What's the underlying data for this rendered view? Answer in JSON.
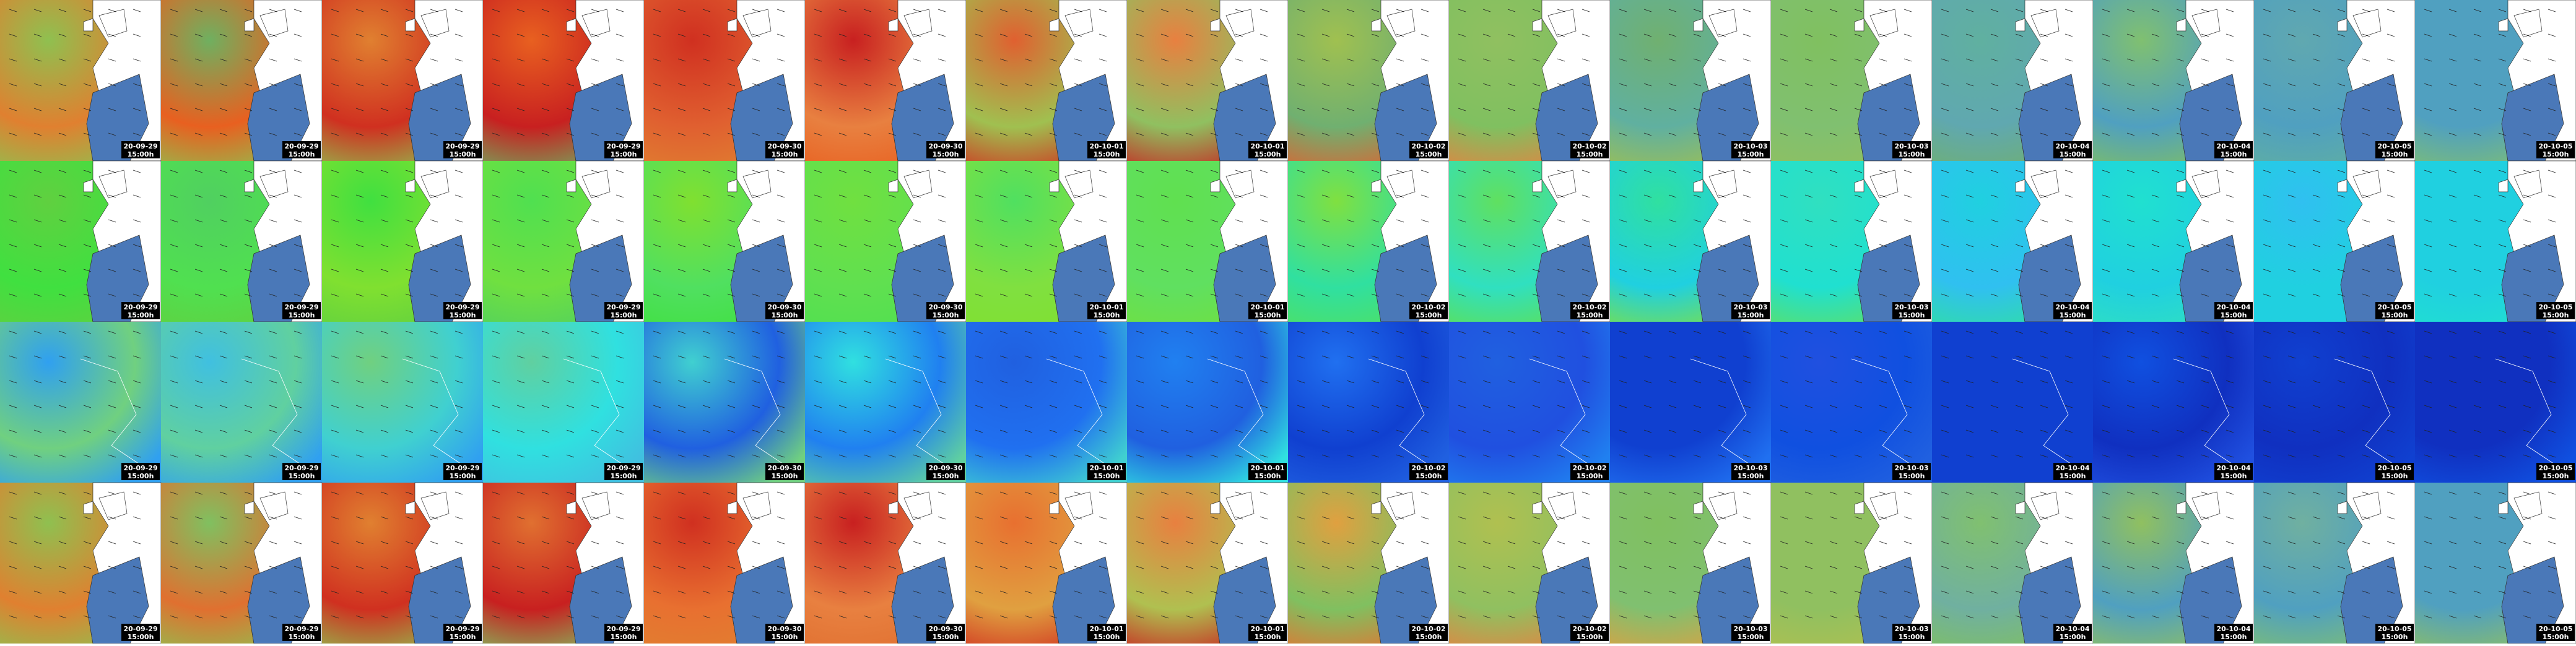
{
  "tiles": [
    {
      "date": "20-09-29",
      "time": "15:00h"
    },
    {
      "date": "20-09-29",
      "time": "15:00h"
    },
    {
      "date": "20-09-29",
      "time": "15:00h"
    },
    {
      "date": "20-09-29",
      "time": "15:00h"
    },
    {
      "date": "20-09-30",
      "time": "15:00h"
    },
    {
      "date": "20-09-30",
      "time": "15:00h"
    },
    {
      "date": "20-10-01",
      "time": "15:00h"
    },
    {
      "date": "20-10-01",
      "time": "15:00h"
    },
    {
      "date": "20-10-02",
      "time": "15:00h"
    },
    {
      "date": "20-10-02",
      "time": "15:00h"
    },
    {
      "date": "20-10-03",
      "time": "15:00h"
    },
    {
      "date": "20-10-03",
      "time": "15:00h"
    },
    {
      "date": "20-10-04",
      "time": "15:00h"
    },
    {
      "date": "20-10-04",
      "time": "15:00h"
    },
    {
      "date": "20-10-05",
      "time": "15:00h"
    },
    {
      "date": "20-10-05",
      "time": "15:00h"
    }
  ]
}
